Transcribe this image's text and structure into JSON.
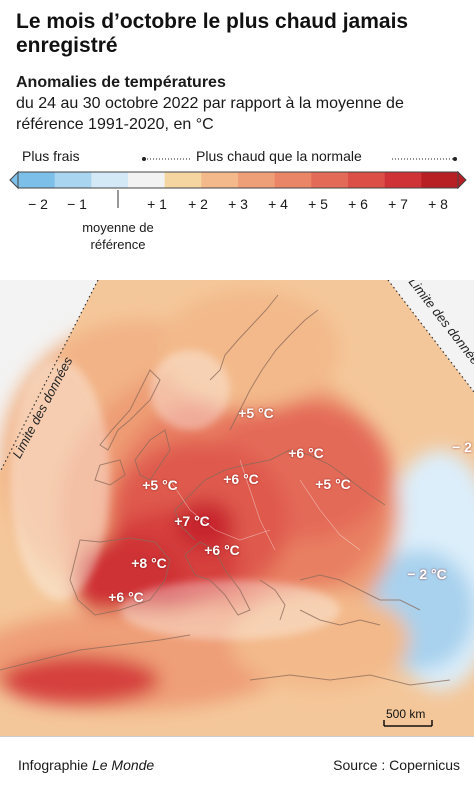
{
  "title": "Le mois d’octobre le plus chaud jamais enregistré",
  "subtitle_bold": "Anomalies de températures",
  "subtitle_text": "du 24 au 30 octobre 2022 par rapport à la moyenne de référence 1991-2020, en °C",
  "legend": {
    "cooler_label": "Plus frais",
    "warmer_label": "Plus chaud que la normale",
    "reference_label": "moyenne de référence",
    "ticks": [
      "− 2",
      "− 1",
      "+ 1",
      "+ 2",
      "+ 3",
      "+ 4",
      "+ 5",
      "+ 6",
      "+ 7",
      "+ 8"
    ],
    "colors": [
      "#7cbfe8",
      "#a9d5f0",
      "#d4e9f6",
      "#f2f2f2",
      "#f6d6a0",
      "#f3b98a",
      "#ef9f77",
      "#ea8567",
      "#e46a58",
      "#db4f46",
      "#cf3335",
      "#b81f25"
    ]
  },
  "map": {
    "temperature_labels": [
      "+5 °C",
      "+6 °C",
      "+5 °C",
      "+6 °C",
      "+5 °C",
      "+7 °C",
      "+6 °C",
      "+8 °C",
      "+6 °C",
      "− 2 °C",
      "− 2"
    ],
    "data_limit_label": "Limite des données",
    "scale_label": "500 km"
  },
  "footer": {
    "credit_prefix": "Infographie ",
    "credit_brand": "Le Monde",
    "source": "Source : Copernicus"
  }
}
